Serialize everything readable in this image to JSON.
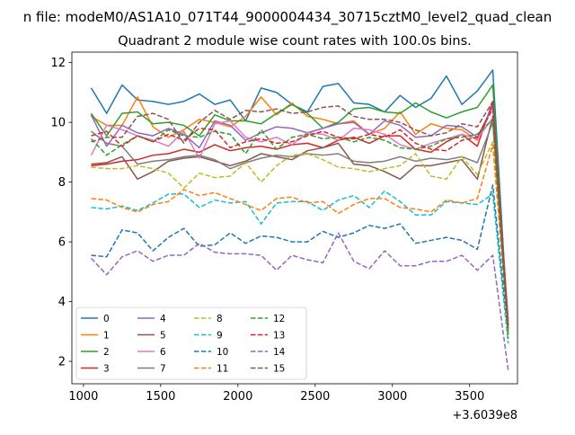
{
  "chart_data": {
    "type": "line",
    "suptitle": "n file: modeM0/AS1A10_071T44_9000004434_30715cztM0_level2_quad_clean",
    "title": "Quadrant 2 module wise count rates with 100.0s bins.",
    "xlabel": "",
    "ylabel": "",
    "x_offset_label": "+3.6039e8",
    "xlim": [
      925,
      3810
    ],
    "ylim": [
      1.25,
      12.35
    ],
    "xticks": [
      1000,
      1500,
      2000,
      2500,
      3000,
      3500
    ],
    "yticks": [
      2,
      4,
      6,
      8,
      10,
      12
    ],
    "legend_position": "lower-left",
    "grid": false,
    "x": [
      1050,
      1150,
      1250,
      1350,
      1450,
      1550,
      1650,
      1750,
      1850,
      1950,
      2050,
      2150,
      2250,
      2350,
      2450,
      2550,
      2650,
      2750,
      2850,
      2950,
      3050,
      3150,
      3250,
      3350,
      3450,
      3550,
      3650,
      3750
    ],
    "series": [
      {
        "name": "0",
        "color": "#1f77b4",
        "dash": "solid",
        "values": [
          11.15,
          10.3,
          11.25,
          10.75,
          10.7,
          10.6,
          10.7,
          10.95,
          10.6,
          10.75,
          10.05,
          11.15,
          11.0,
          10.6,
          10.35,
          11.2,
          11.3,
          10.65,
          10.6,
          10.35,
          10.9,
          10.5,
          10.8,
          11.55,
          10.6,
          11.05,
          11.75,
          3.0
        ]
      },
      {
        "name": "1",
        "color": "#ff7f0e",
        "dash": "solid",
        "values": [
          10.2,
          9.9,
          9.9,
          10.85,
          9.85,
          9.5,
          9.75,
          10.1,
          10.0,
          9.85,
          10.2,
          10.85,
          10.25,
          10.65,
          10.2,
          10.1,
          9.95,
          10.05,
          9.6,
          9.8,
          10.35,
          9.6,
          9.95,
          9.8,
          9.75,
          9.4,
          10.55,
          3.2
        ]
      },
      {
        "name": "2",
        "color": "#2ca02c",
        "dash": "solid",
        "values": [
          10.3,
          9.55,
          10.3,
          10.35,
          9.95,
          10.0,
          9.9,
          9.55,
          10.25,
          10.05,
          10.05,
          9.95,
          10.3,
          10.6,
          10.3,
          9.8,
          10.0,
          10.45,
          10.5,
          10.35,
          10.3,
          10.65,
          10.35,
          10.15,
          10.35,
          10.5,
          11.25,
          3.1
        ]
      },
      {
        "name": "3",
        "color": "#d62728",
        "dash": "solid",
        "values": [
          8.55,
          8.6,
          8.7,
          8.75,
          8.9,
          8.95,
          9.1,
          9.0,
          9.25,
          9.05,
          9.15,
          9.2,
          9.1,
          9.25,
          9.3,
          9.15,
          9.4,
          9.5,
          9.3,
          9.55,
          9.55,
          9.1,
          9.0,
          9.35,
          9.6,
          9.2,
          10.7,
          3.0
        ]
      },
      {
        "name": "4",
        "color": "#9467bd",
        "dash": "solid",
        "values": [
          10.25,
          9.2,
          9.9,
          9.65,
          9.55,
          9.8,
          9.6,
          9.15,
          10.05,
          9.9,
          9.4,
          9.65,
          9.85,
          9.8,
          9.65,
          9.8,
          9.95,
          10.0,
          9.6,
          10.05,
          9.9,
          9.5,
          9.55,
          9.9,
          9.85,
          9.5,
          10.55,
          3.4
        ]
      },
      {
        "name": "5",
        "color": "#8c564b",
        "dash": "solid",
        "values": [
          8.6,
          8.65,
          8.85,
          8.1,
          8.35,
          8.7,
          8.8,
          8.85,
          8.7,
          8.55,
          8.7,
          8.95,
          8.85,
          8.75,
          9.05,
          9.15,
          9.3,
          8.6,
          8.55,
          8.35,
          8.1,
          8.55,
          8.55,
          8.65,
          8.75,
          8.1,
          10.2,
          3.2
        ]
      },
      {
        "name": "6",
        "color": "#e377c2",
        "dash": "solid",
        "values": [
          8.9,
          9.9,
          9.75,
          9.55,
          9.4,
          9.2,
          9.7,
          8.8,
          9.95,
          10.05,
          9.5,
          9.35,
          9.5,
          9.25,
          9.65,
          9.6,
          9.4,
          9.8,
          9.75,
          9.6,
          9.25,
          9.1,
          9.3,
          9.45,
          9.6,
          9.45,
          10.15,
          3.3
        ]
      },
      {
        "name": "7",
        "color": "#7f7f7f",
        "dash": "solid",
        "values": [
          9.7,
          9.3,
          9.2,
          8.6,
          8.7,
          8.75,
          8.85,
          8.9,
          8.75,
          8.45,
          8.65,
          8.8,
          8.9,
          8.85,
          8.95,
          8.9,
          8.95,
          8.7,
          8.65,
          8.7,
          8.85,
          8.7,
          8.8,
          8.75,
          8.85,
          8.65,
          10.0,
          3.0
        ]
      },
      {
        "name": "8",
        "color": "#bcbd22",
        "dash": "dashed",
        "values": [
          8.5,
          8.45,
          8.45,
          8.55,
          8.45,
          8.3,
          7.8,
          8.3,
          8.15,
          8.2,
          8.65,
          8.0,
          8.55,
          8.9,
          8.95,
          8.75,
          8.5,
          8.45,
          8.35,
          8.45,
          8.55,
          8.95,
          8.2,
          8.1,
          8.85,
          8.25,
          9.35,
          3.0
        ]
      },
      {
        "name": "9",
        "color": "#17becf",
        "dash": "dashed",
        "values": [
          7.15,
          7.1,
          7.2,
          7.05,
          7.3,
          7.6,
          7.6,
          7.15,
          7.4,
          7.3,
          7.35,
          6.6,
          7.3,
          7.35,
          7.35,
          7.05,
          7.4,
          7.55,
          7.15,
          7.7,
          7.35,
          6.9,
          6.9,
          7.35,
          7.3,
          7.25,
          7.6,
          2.6
        ]
      },
      {
        "name": "10",
        "color": "#1f77b4",
        "dash": "dashed",
        "values": [
          5.55,
          5.5,
          6.4,
          6.3,
          5.7,
          6.15,
          6.45,
          5.85,
          5.9,
          6.3,
          5.95,
          6.2,
          6.15,
          6.0,
          6.0,
          6.35,
          6.15,
          6.3,
          6.55,
          6.45,
          6.6,
          5.95,
          6.05,
          6.15,
          6.05,
          5.75,
          7.9,
          2.9
        ]
      },
      {
        "name": "11",
        "color": "#ff7f0e",
        "dash": "dashed",
        "values": [
          7.45,
          7.4,
          7.15,
          7.0,
          7.25,
          7.35,
          7.75,
          7.55,
          7.65,
          7.45,
          7.25,
          7.05,
          7.45,
          7.5,
          7.3,
          7.35,
          6.95,
          7.25,
          7.45,
          7.45,
          7.15,
          7.1,
          7.0,
          7.4,
          7.3,
          7.45,
          9.25,
          3.0
        ]
      },
      {
        "name": "12",
        "color": "#2ca02c",
        "dash": "dashed",
        "values": [
          9.45,
          8.9,
          9.25,
          9.55,
          9.35,
          9.75,
          9.55,
          9.5,
          9.7,
          9.6,
          8.95,
          9.75,
          9.1,
          9.5,
          9.6,
          9.45,
          9.5,
          9.35,
          9.5,
          9.4,
          9.15,
          9.1,
          9.2,
          9.45,
          9.5,
          9.6,
          10.1,
          2.75
        ]
      },
      {
        "name": "13",
        "color": "#d62728",
        "dash": "dashed",
        "values": [
          9.55,
          9.7,
          9.2,
          9.55,
          9.35,
          9.6,
          9.4,
          9.8,
          9.75,
          9.15,
          9.35,
          9.45,
          9.3,
          9.35,
          9.55,
          9.7,
          9.5,
          9.45,
          9.6,
          9.5,
          9.75,
          9.3,
          9.1,
          9.05,
          9.4,
          9.5,
          10.45,
          3.1
        ]
      },
      {
        "name": "14",
        "color": "#9467bd",
        "dash": "dashed",
        "values": [
          5.45,
          4.9,
          5.5,
          5.7,
          5.35,
          5.55,
          5.55,
          5.95,
          5.65,
          5.6,
          5.6,
          5.55,
          5.05,
          5.55,
          5.4,
          5.3,
          6.3,
          5.35,
          5.1,
          5.7,
          5.2,
          5.2,
          5.35,
          5.35,
          5.55,
          5.05,
          5.55,
          1.7
        ]
      },
      {
        "name": "15",
        "color": "#8c564b",
        "dash": "dashed",
        "values": [
          9.35,
          9.5,
          9.5,
          10.2,
          10.3,
          10.1,
          9.3,
          10.0,
          10.4,
          10.1,
          10.4,
          10.35,
          10.45,
          10.3,
          10.35,
          10.5,
          10.55,
          10.2,
          10.1,
          10.1,
          10.0,
          9.75,
          9.55,
          9.65,
          9.95,
          9.85,
          10.7,
          3.2
        ]
      }
    ]
  }
}
